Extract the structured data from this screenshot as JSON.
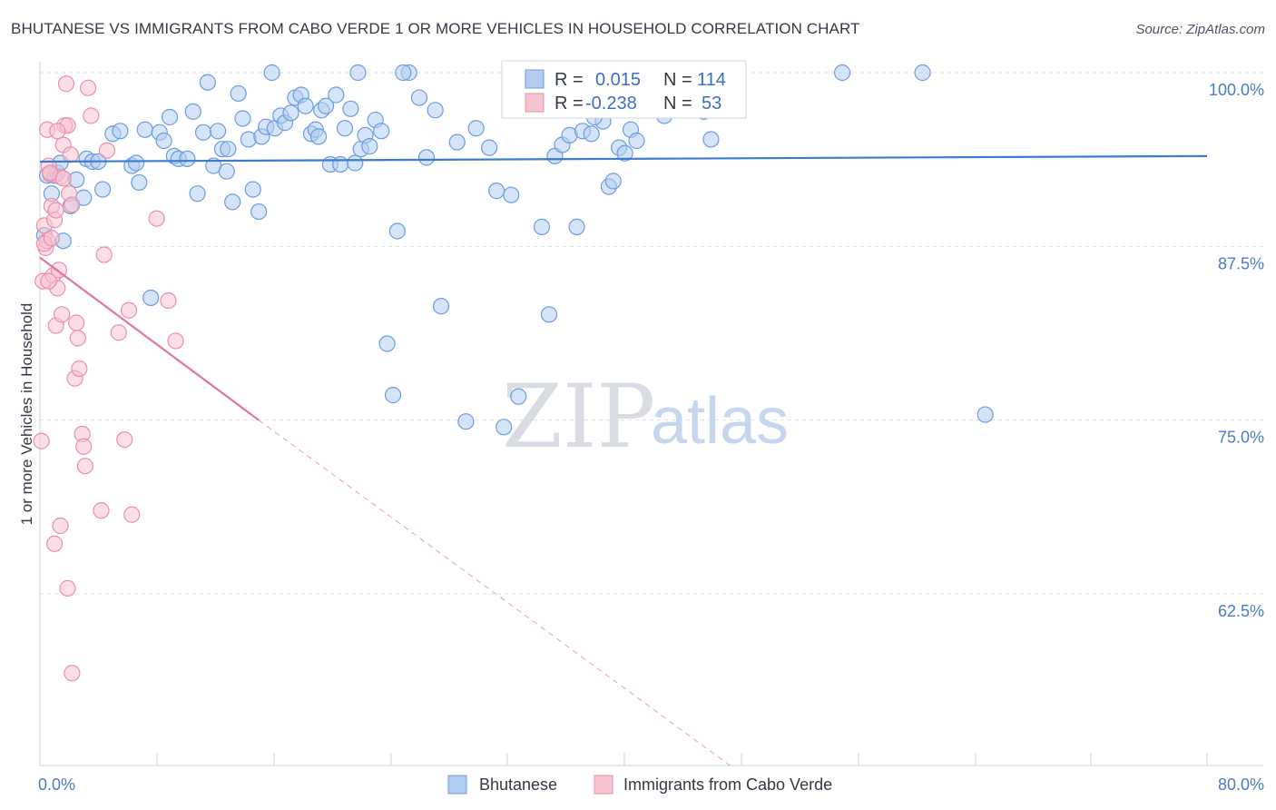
{
  "title": "BHUTANESE VS IMMIGRANTS FROM CABO VERDE 1 OR MORE VEHICLES IN HOUSEHOLD CORRELATION CHART",
  "source": "Source: ZipAtlas.com",
  "watermark": {
    "zip": "ZIP",
    "atlas": "atlas"
  },
  "legend_box": {
    "rows": [
      {
        "r_label": "R = ",
        "r_value": "0.015",
        "n_label": "N = ",
        "n_value": "114",
        "color": "#a9c7ef"
      },
      {
        "r_label": "R = ",
        "r_value": "-0.238",
        "n_label": "N = ",
        "n_value": "53",
        "color": "#f5b7c8"
      }
    ]
  },
  "chart_data": {
    "type": "scatter",
    "title": "BHUTANESE VS IMMIGRANTS FROM CABO VERDE 1 OR MORE VEHICLES IN HOUSEHOLD CORRELATION CHART",
    "xlabel": "",
    "ylabel": "1 or more Vehicles in Household",
    "xlim": [
      0,
      80
    ],
    "ylim": [
      50,
      101
    ],
    "x_tick_labels": [
      "0.0%",
      "80.0%"
    ],
    "y_ticks": [
      62.5,
      75.0,
      87.5,
      100.0
    ],
    "y_tick_labels": [
      "62.5%",
      "75.0%",
      "87.5%",
      "100.0%"
    ],
    "grid": true,
    "legend_position": "bottom-center",
    "series": [
      {
        "name": "Bhutanese",
        "color": "#6b9de0",
        "fill": "#b3cdf0",
        "trend": {
          "x0": 0,
          "y0": 93.6,
          "x1": 80,
          "y1": 94.0
        },
        "points": [
          [
            0.3,
            88.3
          ],
          [
            0.5,
            92.6
          ],
          [
            0.8,
            91.3
          ],
          [
            1.0,
            92.6
          ],
          [
            1.2,
            92.8
          ],
          [
            1.4,
            93.5
          ],
          [
            1.6,
            87.9
          ],
          [
            2.1,
            90.4
          ],
          [
            2.5,
            92.3
          ],
          [
            3.0,
            91.0
          ],
          [
            3.2,
            93.8
          ],
          [
            3.6,
            93.6
          ],
          [
            4.0,
            93.6
          ],
          [
            4.3,
            91.6
          ],
          [
            5.0,
            95.6
          ],
          [
            5.5,
            95.8
          ],
          [
            6.3,
            93.3
          ],
          [
            6.6,
            93.5
          ],
          [
            6.8,
            92.1
          ],
          [
            7.2,
            95.9
          ],
          [
            7.6,
            83.8
          ],
          [
            8.2,
            95.7
          ],
          [
            8.5,
            95.1
          ],
          [
            8.9,
            96.8
          ],
          [
            9.2,
            94.0
          ],
          [
            9.5,
            93.8
          ],
          [
            10.1,
            93.8
          ],
          [
            10.5,
            97.2
          ],
          [
            10.8,
            91.3
          ],
          [
            11.2,
            95.7
          ],
          [
            11.5,
            99.3
          ],
          [
            11.9,
            93.3
          ],
          [
            12.2,
            95.8
          ],
          [
            12.5,
            94.5
          ],
          [
            12.9,
            94.5
          ],
          [
            13.2,
            90.7
          ],
          [
            13.6,
            98.5
          ],
          [
            13.9,
            96.7
          ],
          [
            14.3,
            95.2
          ],
          [
            14.6,
            91.6
          ],
          [
            15.0,
            90.0
          ],
          [
            15.2,
            95.4
          ],
          [
            15.5,
            96.1
          ],
          [
            15.9,
            100.0
          ],
          [
            16.1,
            96.0
          ],
          [
            16.5,
            96.9
          ],
          [
            16.8,
            96.4
          ],
          [
            17.2,
            97.1
          ],
          [
            17.5,
            98.2
          ],
          [
            17.9,
            98.4
          ],
          [
            18.2,
            97.6
          ],
          [
            18.6,
            95.6
          ],
          [
            18.9,
            95.9
          ],
          [
            19.3,
            97.3
          ],
          [
            19.6,
            97.6
          ],
          [
            19.9,
            93.4
          ],
          [
            20.3,
            98.4
          ],
          [
            20.6,
            93.4
          ],
          [
            20.9,
            96.0
          ],
          [
            21.3,
            97.4
          ],
          [
            21.6,
            93.5
          ],
          [
            22.0,
            94.5
          ],
          [
            22.3,
            95.5
          ],
          [
            22.6,
            94.7
          ],
          [
            23.0,
            96.6
          ],
          [
            23.4,
            95.8
          ],
          [
            23.8,
            80.5
          ],
          [
            24.2,
            76.8
          ],
          [
            24.5,
            88.6
          ],
          [
            25.3,
            100.0
          ],
          [
            26.0,
            98.2
          ],
          [
            26.5,
            93.9
          ],
          [
            27.1,
            97.3
          ],
          [
            27.5,
            83.2
          ],
          [
            29.2,
            74.9
          ],
          [
            29.9,
            96.0
          ],
          [
            30.8,
            94.6
          ],
          [
            31.3,
            91.5
          ],
          [
            31.8,
            74.5
          ],
          [
            32.3,
            91.2
          ],
          [
            32.8,
            76.7
          ],
          [
            33.3,
            100.0
          ],
          [
            34.4,
            88.9
          ],
          [
            34.9,
            82.6
          ],
          [
            35.3,
            94.0
          ],
          [
            35.8,
            94.8
          ],
          [
            36.3,
            95.5
          ],
          [
            36.8,
            88.9
          ],
          [
            37.2,
            95.8
          ],
          [
            37.8,
            95.6
          ],
          [
            38.6,
            96.5
          ],
          [
            39.0,
            91.8
          ],
          [
            39.3,
            92.2
          ],
          [
            39.7,
            94.6
          ],
          [
            40.1,
            94.2
          ],
          [
            40.5,
            95.9
          ],
          [
            40.9,
            95.1
          ],
          [
            41.5,
            97.5
          ],
          [
            42.8,
            96.9
          ],
          [
            43.3,
            100.0
          ],
          [
            44.0,
            97.8
          ],
          [
            45.0,
            100.0
          ],
          [
            45.5,
            97.2
          ],
          [
            46.0,
            95.2
          ],
          [
            55.0,
            100.0
          ],
          [
            60.5,
            100.0
          ],
          [
            64.8,
            75.4
          ],
          [
            24.9,
            100.0
          ],
          [
            21.8,
            100.0
          ],
          [
            42.4,
            100.0
          ],
          [
            43.8,
            100.0
          ],
          [
            38.0,
            96.8
          ],
          [
            28.6,
            95.0
          ],
          [
            19.1,
            95.4
          ],
          [
            12.8,
            92.9
          ]
        ]
      },
      {
        "name": "Immigrants from Cabo Verde",
        "color": "#ea8fab",
        "fill": "#f7c3d1",
        "trend": {
          "x0": 0,
          "y0": 86.7,
          "x1": 15,
          "y1": 75.0
        },
        "trend_dashed": {
          "x0": 15,
          "y0": 75.0,
          "x1": 47.5,
          "y1": 50.0
        },
        "points": [
          [
            0.1,
            73.5
          ],
          [
            0.2,
            85.0
          ],
          [
            0.3,
            89.0
          ],
          [
            0.4,
            87.4
          ],
          [
            0.5,
            87.9
          ],
          [
            0.6,
            93.3
          ],
          [
            0.7,
            92.7
          ],
          [
            0.8,
            90.4
          ],
          [
            0.9,
            85.4
          ],
          [
            1.0,
            89.4
          ],
          [
            1.1,
            81.8
          ],
          [
            1.2,
            84.5
          ],
          [
            1.3,
            85.8
          ],
          [
            1.4,
            92.5
          ],
          [
            1.5,
            82.6
          ],
          [
            1.6,
            94.8
          ],
          [
            1.7,
            96.2
          ],
          [
            1.8,
            99.2
          ],
          [
            1.9,
            96.2
          ],
          [
            2.0,
            91.3
          ],
          [
            2.1,
            94.1
          ],
          [
            2.2,
            90.5
          ],
          [
            2.4,
            78.0
          ],
          [
            2.5,
            82.0
          ],
          [
            2.6,
            80.9
          ],
          [
            2.7,
            78.7
          ],
          [
            2.9,
            74.0
          ],
          [
            3.0,
            73.1
          ],
          [
            3.1,
            71.7
          ],
          [
            3.3,
            98.9
          ],
          [
            3.5,
            96.9
          ],
          [
            4.2,
            68.5
          ],
          [
            4.4,
            86.9
          ],
          [
            4.6,
            94.4
          ],
          [
            5.4,
            81.3
          ],
          [
            5.8,
            73.6
          ],
          [
            6.1,
            82.9
          ],
          [
            6.3,
            68.2
          ],
          [
            8.0,
            89.5
          ],
          [
            8.8,
            83.6
          ],
          [
            9.3,
            80.7
          ],
          [
            0.7,
            92.8
          ],
          [
            1.0,
            66.1
          ],
          [
            1.4,
            67.4
          ],
          [
            1.9,
            62.9
          ],
          [
            2.2,
            56.8
          ],
          [
            0.5,
            95.9
          ],
          [
            1.2,
            95.8
          ],
          [
            0.3,
            87.7
          ],
          [
            0.8,
            88.1
          ],
          [
            1.6,
            92.4
          ],
          [
            1.1,
            90.1
          ],
          [
            0.6,
            85.0
          ]
        ]
      }
    ]
  }
}
